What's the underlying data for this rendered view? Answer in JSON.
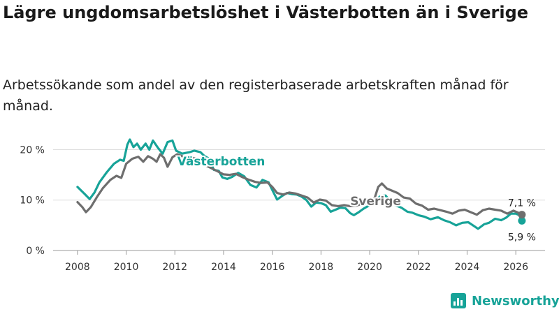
{
  "title": "Lägre ungdomsarbetslöshet i Västerbotten än i Sverige",
  "subtitle": "Arbetssökande som andel av den registerbaserade arbetskraften månad för månad.",
  "brand": {
    "name": "Newsworthy",
    "icon": "newsworthy-logo-icon"
  },
  "colors": {
    "vasterbotten": "#17a398",
    "sverige": "#6e6e6e",
    "grid": "#dddddd"
  },
  "chart_data": {
    "type": "line",
    "title": "Lägre ungdomsarbetslöshet i Västerbotten än i Sverige",
    "xlabel": "",
    "ylabel": "",
    "xlim": [
      2007.0,
      2027.2
    ],
    "ylim": [
      0,
      22
    ],
    "y_ticks": [
      0,
      10,
      20
    ],
    "y_tick_labels": [
      "0 %",
      "10 %",
      "20 %"
    ],
    "x_ticks": [
      2008,
      2010,
      2012,
      2014,
      2016,
      2018,
      2020,
      2022,
      2024,
      2026
    ],
    "x_tick_labels": [
      "2008",
      "2010",
      "2012",
      "2014",
      "2016",
      "2018",
      "2020",
      "2022",
      "2024",
      "2026"
    ],
    "grid": true,
    "series": [
      {
        "name": "Västerbotten",
        "color": "#17a398",
        "last_value_label": "5,9 %",
        "points": [
          [
            2008.0,
            12.6
          ],
          [
            2008.3,
            11.2
          ],
          [
            2008.5,
            10.2
          ],
          [
            2008.7,
            11.5
          ],
          [
            2008.9,
            13.5
          ],
          [
            2009.2,
            15.5
          ],
          [
            2009.5,
            17.2
          ],
          [
            2009.75,
            18.0
          ],
          [
            2009.9,
            17.8
          ],
          [
            2010.05,
            21.0
          ],
          [
            2010.15,
            22.0
          ],
          [
            2010.3,
            20.5
          ],
          [
            2010.45,
            21.2
          ],
          [
            2010.6,
            20.0
          ],
          [
            2010.8,
            21.2
          ],
          [
            2010.95,
            20.0
          ],
          [
            2011.1,
            21.8
          ],
          [
            2011.3,
            20.4
          ],
          [
            2011.5,
            19.2
          ],
          [
            2011.7,
            21.5
          ],
          [
            2011.9,
            21.8
          ],
          [
            2012.05,
            19.8
          ],
          [
            2012.3,
            19.2
          ],
          [
            2012.6,
            19.5
          ],
          [
            2012.8,
            19.8
          ],
          [
            2013.05,
            19.5
          ],
          [
            2013.2,
            18.8
          ],
          [
            2013.4,
            18.2
          ],
          [
            2013.6,
            16.0
          ],
          [
            2013.8,
            15.8
          ],
          [
            2013.95,
            14.5
          ],
          [
            2014.15,
            14.2
          ],
          [
            2014.35,
            14.6
          ],
          [
            2014.6,
            15.4
          ],
          [
            2014.85,
            14.7
          ],
          [
            2015.1,
            13.0
          ],
          [
            2015.35,
            12.5
          ],
          [
            2015.6,
            14.0
          ],
          [
            2015.85,
            13.5
          ],
          [
            2016.0,
            12.0
          ],
          [
            2016.2,
            10.1
          ],
          [
            2016.4,
            10.8
          ],
          [
            2016.6,
            11.4
          ],
          [
            2016.8,
            11.2
          ],
          [
            2017.0,
            11.1
          ],
          [
            2017.2,
            10.7
          ],
          [
            2017.4,
            10.0
          ],
          [
            2017.6,
            8.7
          ],
          [
            2017.8,
            9.5
          ],
          [
            2018.0,
            9.4
          ],
          [
            2018.2,
            9.0
          ],
          [
            2018.4,
            7.7
          ],
          [
            2018.6,
            8.1
          ],
          [
            2018.8,
            8.5
          ],
          [
            2019.0,
            8.4
          ],
          [
            2019.2,
            7.4
          ],
          [
            2019.35,
            7.0
          ],
          [
            2019.55,
            7.6
          ],
          [
            2019.75,
            8.3
          ],
          [
            2020.0,
            9.0
          ],
          [
            2020.25,
            10.0
          ],
          [
            2020.45,
            10.8
          ],
          [
            2020.65,
            10.9
          ],
          [
            2020.85,
            9.8
          ],
          [
            2021.05,
            9.0
          ],
          [
            2021.3,
            8.5
          ],
          [
            2021.55,
            7.7
          ],
          [
            2021.75,
            7.5
          ],
          [
            2022.0,
            7.0
          ],
          [
            2022.25,
            6.7
          ],
          [
            2022.5,
            6.2
          ],
          [
            2022.8,
            6.6
          ],
          [
            2023.05,
            6.0
          ],
          [
            2023.3,
            5.6
          ],
          [
            2023.55,
            5.0
          ],
          [
            2023.8,
            5.5
          ],
          [
            2024.05,
            5.6
          ],
          [
            2024.3,
            4.8
          ],
          [
            2024.45,
            4.3
          ],
          [
            2024.7,
            5.2
          ],
          [
            2024.9,
            5.5
          ],
          [
            2025.15,
            6.3
          ],
          [
            2025.4,
            6.0
          ],
          [
            2025.6,
            6.5
          ],
          [
            2025.8,
            7.3
          ],
          [
            2026.0,
            7.3
          ],
          [
            2026.15,
            7.0
          ],
          [
            2026.25,
            5.9
          ]
        ]
      },
      {
        "name": "Sverige",
        "color": "#6e6e6e",
        "last_value_label": "7,1 %",
        "points": [
          [
            2008.0,
            9.6
          ],
          [
            2008.2,
            8.6
          ],
          [
            2008.35,
            7.6
          ],
          [
            2008.55,
            8.6
          ],
          [
            2008.8,
            10.6
          ],
          [
            2009.05,
            12.4
          ],
          [
            2009.35,
            14.0
          ],
          [
            2009.6,
            14.8
          ],
          [
            2009.8,
            14.4
          ],
          [
            2010.0,
            17.2
          ],
          [
            2010.25,
            18.2
          ],
          [
            2010.5,
            18.6
          ],
          [
            2010.7,
            17.6
          ],
          [
            2010.9,
            18.7
          ],
          [
            2011.1,
            18.2
          ],
          [
            2011.25,
            17.6
          ],
          [
            2011.4,
            19.1
          ],
          [
            2011.55,
            18.4
          ],
          [
            2011.7,
            16.6
          ],
          [
            2011.9,
            18.5
          ],
          [
            2012.1,
            19.1
          ],
          [
            2012.35,
            18.6
          ],
          [
            2012.6,
            18.6
          ],
          [
            2012.85,
            18.2
          ],
          [
            2013.05,
            17.4
          ],
          [
            2013.3,
            16.8
          ],
          [
            2013.55,
            16.2
          ],
          [
            2013.8,
            15.6
          ],
          [
            2014.0,
            15.1
          ],
          [
            2014.25,
            15.0
          ],
          [
            2014.5,
            15.2
          ],
          [
            2014.75,
            14.6
          ],
          [
            2015.0,
            14.1
          ],
          [
            2015.3,
            13.6
          ],
          [
            2015.55,
            13.4
          ],
          [
            2015.8,
            13.5
          ],
          [
            2016.0,
            12.6
          ],
          [
            2016.2,
            11.4
          ],
          [
            2016.45,
            11.1
          ],
          [
            2016.7,
            11.5
          ],
          [
            2016.95,
            11.3
          ],
          [
            2017.2,
            10.9
          ],
          [
            2017.45,
            10.5
          ],
          [
            2017.7,
            9.5
          ],
          [
            2017.95,
            10.1
          ],
          [
            2018.2,
            9.9
          ],
          [
            2018.45,
            9.0
          ],
          [
            2018.7,
            8.8
          ],
          [
            2018.95,
            9.0
          ],
          [
            2019.2,
            8.8
          ],
          [
            2019.45,
            8.9
          ],
          [
            2019.7,
            9.3
          ],
          [
            2019.95,
            9.5
          ],
          [
            2020.15,
            9.6
          ],
          [
            2020.35,
            12.6
          ],
          [
            2020.5,
            13.3
          ],
          [
            2020.7,
            12.3
          ],
          [
            2020.9,
            11.9
          ],
          [
            2021.15,
            11.4
          ],
          [
            2021.4,
            10.5
          ],
          [
            2021.65,
            10.3
          ],
          [
            2021.9,
            9.3
          ],
          [
            2022.15,
            8.9
          ],
          [
            2022.4,
            8.1
          ],
          [
            2022.65,
            8.3
          ],
          [
            2022.9,
            8.0
          ],
          [
            2023.15,
            7.7
          ],
          [
            2023.4,
            7.3
          ],
          [
            2023.65,
            7.9
          ],
          [
            2023.9,
            8.1
          ],
          [
            2024.15,
            7.6
          ],
          [
            2024.4,
            7.1
          ],
          [
            2024.65,
            8.0
          ],
          [
            2024.9,
            8.3
          ],
          [
            2025.15,
            8.1
          ],
          [
            2025.4,
            7.9
          ],
          [
            2025.65,
            7.3
          ],
          [
            2025.9,
            7.9
          ],
          [
            2026.1,
            7.5
          ],
          [
            2026.25,
            7.1
          ]
        ]
      }
    ],
    "annotations": [
      {
        "text": "Västerbotten",
        "series": "Västerbotten",
        "x": 2012.1,
        "y": 16.9
      },
      {
        "text": "Sverige",
        "series": "Sverige",
        "x": 2019.2,
        "y": 9.0
      }
    ]
  }
}
